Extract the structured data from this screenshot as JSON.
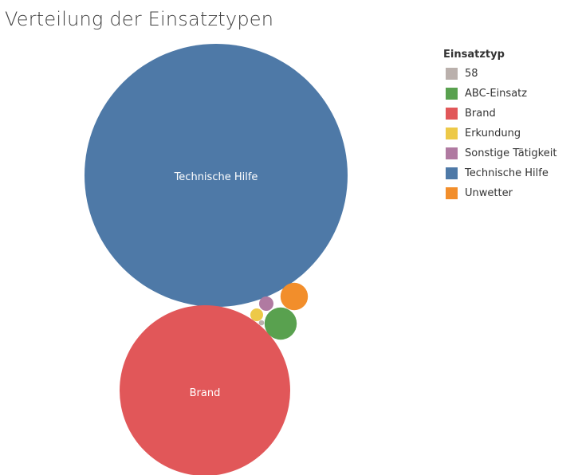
{
  "title": "Verteilung der Einsatztypen",
  "legend": {
    "title": "Einsatztyp",
    "items": [
      {
        "label": "58",
        "color": "#bab0ac"
      },
      {
        "label": "ABC-Einsatz",
        "color": "#59a14f"
      },
      {
        "label": "Brand",
        "color": "#e15759"
      },
      {
        "label": "Erkundung",
        "color": "#edc948"
      },
      {
        "label": "Sonstige Tätigkeit",
        "color": "#b07aa1"
      },
      {
        "label": "Technische Hilfe",
        "color": "#4e79a7"
      },
      {
        "label": "Unwetter",
        "color": "#f28e2b"
      }
    ]
  },
  "chart_data": {
    "type": "packed-bubble",
    "title": "Verteilung der Einsatztypen",
    "legend_title": "Einsatztyp",
    "legend_position": "right",
    "categories": [
      "Technische Hilfe",
      "Brand",
      "ABC-Einsatz",
      "Unwetter",
      "Sonstige Tätigkeit",
      "Erkundung",
      "58"
    ],
    "values": [
      100,
      41.6,
      1.49,
      1.09,
      0.3,
      0.24,
      0.04
    ],
    "colors": [
      "#4e79a7",
      "#e15759",
      "#59a14f",
      "#f28e2b",
      "#b07aa1",
      "#edc948",
      "#bab0ac"
    ],
    "labels_shown": [
      "Technische Hilfe",
      "Brand"
    ]
  }
}
